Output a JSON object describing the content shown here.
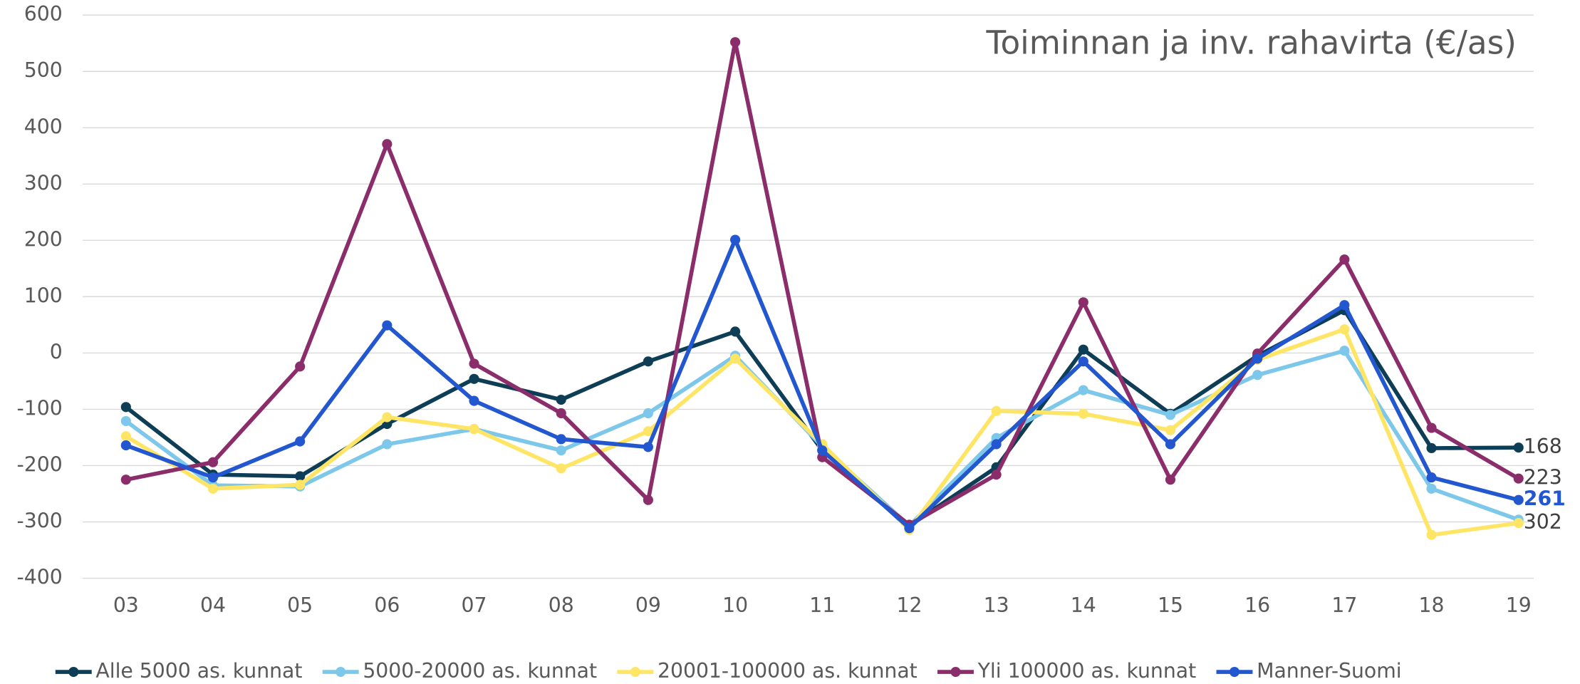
{
  "chart_data": {
    "type": "line",
    "title": "Toiminnan ja inv. rahavirta (€/as)",
    "categories": [
      "03",
      "04",
      "05",
      "06",
      "07",
      "08",
      "09",
      "10",
      "11",
      "12",
      "13",
      "14",
      "15",
      "16",
      "17",
      "18",
      "19"
    ],
    "ylim": [
      -400,
      600
    ],
    "yticks": [
      -400,
      -300,
      -200,
      -100,
      0,
      100,
      200,
      300,
      400,
      500,
      600
    ],
    "grid": true,
    "legend": "bottom",
    "highlight_series": 4,
    "series": [
      {
        "name": "Alle 5000 as. kunnat",
        "color": "#0e3d56",
        "values": [
          -96,
          -216,
          -219,
          -126,
          -46,
          -83,
          -15,
          38,
          -173,
          -307,
          -203,
          6,
          -108,
          -5,
          76,
          -169,
          -168
        ],
        "value_labels": [
          null,
          null,
          null,
          null,
          null,
          null,
          null,
          null,
          null,
          null,
          null,
          null,
          null,
          null,
          null,
          null,
          "168"
        ]
      },
      {
        "name": "5000-20000 as. kunnat",
        "color": "#7dc8ea",
        "values": [
          -121,
          -235,
          -237,
          -162,
          -135,
          -173,
          -107,
          -5,
          -166,
          -307,
          -151,
          -66,
          -110,
          -39,
          4,
          -241,
          -296
        ]
      },
      {
        "name": "20001-100000 as. kunnat",
        "color": "#ffe566",
        "values": [
          -148,
          -241,
          -234,
          -114,
          -135,
          -205,
          -139,
          -10,
          -162,
          -314,
          -103,
          -108,
          -137,
          -12,
          42,
          -323,
          -302
        ],
        "value_labels": [
          null,
          null,
          null,
          null,
          null,
          null,
          null,
          null,
          null,
          null,
          null,
          null,
          null,
          null,
          null,
          null,
          "302"
        ]
      },
      {
        "name": "Yli 100000 as. kunnat",
        "color": "#8b2d6a",
        "values": [
          -225,
          -194,
          -24,
          371,
          -19,
          -107,
          -261,
          552,
          -185,
          -305,
          -216,
          90,
          -225,
          -1,
          166,
          -133,
          -223
        ],
        "value_labels": [
          null,
          null,
          null,
          null,
          null,
          null,
          null,
          null,
          null,
          null,
          null,
          null,
          null,
          null,
          null,
          null,
          "223"
        ]
      },
      {
        "name": "Manner-Suomi",
        "color": "#2257d0",
        "values": [
          -164,
          -221,
          -157,
          49,
          -85,
          -153,
          -167,
          201,
          -173,
          -311,
          -162,
          -15,
          -162,
          -10,
          85,
          -221,
          -261
        ],
        "value_labels": [
          null,
          null,
          null,
          null,
          null,
          null,
          null,
          null,
          null,
          null,
          null,
          null,
          null,
          null,
          null,
          null,
          "261"
        ]
      }
    ]
  }
}
